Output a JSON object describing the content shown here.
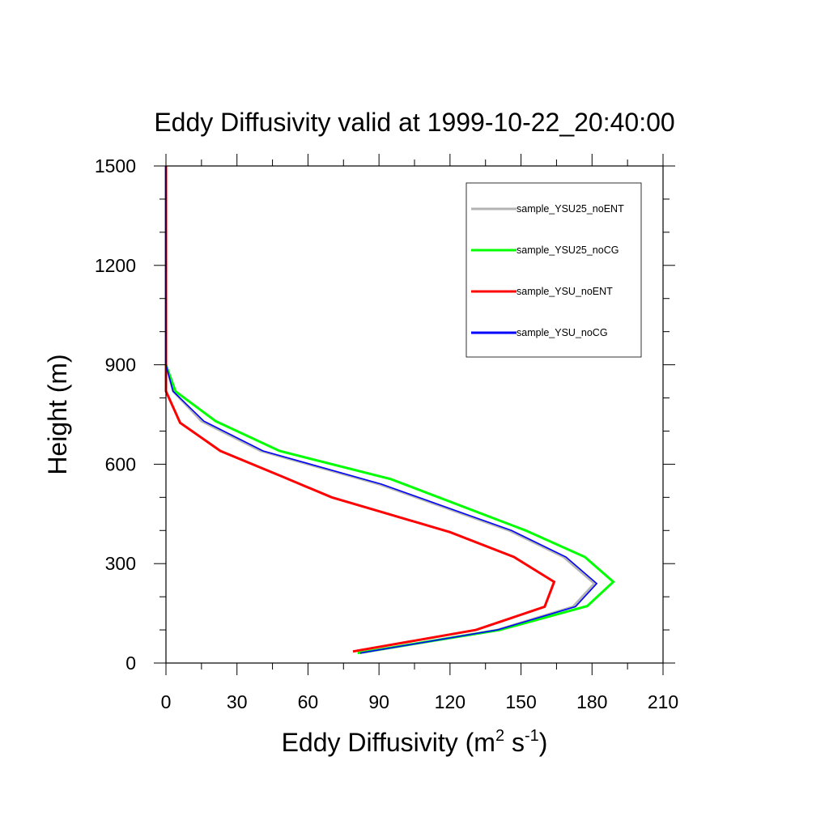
{
  "chart_data": {
    "type": "line",
    "title": "Eddy Diffusivity valid at 1999-10-22_20:40:00",
    "xlabel": {
      "base": "Eddy Diffusivity (m",
      "sup1": "2",
      "mid": " s",
      "sup2": "-1",
      "end": ")"
    },
    "ylabel": "Height (m)",
    "xlim": [
      0,
      210
    ],
    "ylim": [
      0,
      1500
    ],
    "x_ticks": [
      0,
      30,
      60,
      90,
      120,
      150,
      180,
      210
    ],
    "y_ticks": [
      0,
      300,
      600,
      900,
      1200,
      1500
    ],
    "x_tick_labels": [
      "0",
      "30",
      "60",
      "90",
      "120",
      "150",
      "180",
      "210"
    ],
    "y_tick_labels": [
      "0",
      "300",
      "600",
      "900",
      "1200",
      "1500"
    ],
    "legend_position": "top-right",
    "grid": false,
    "series": [
      {
        "name": "sample_YSU25_noENT",
        "color": "#b4b4b4",
        "points": [
          [
            82,
            30
          ],
          [
            140,
            100
          ],
          [
            172,
            170
          ],
          [
            181,
            240
          ],
          [
            168,
            320
          ],
          [
            145,
            400
          ],
          [
            90,
            540
          ],
          [
            40,
            640
          ],
          [
            15,
            730
          ],
          [
            3,
            820
          ],
          [
            0,
            900
          ],
          [
            0,
            1500
          ]
        ]
      },
      {
        "name": "sample_YSU25_noCG",
        "color": "#00ff00",
        "points": [
          [
            81,
            30
          ],
          [
            141,
            100
          ],
          [
            178,
            172
          ],
          [
            189,
            245
          ],
          [
            177,
            320
          ],
          [
            152,
            400
          ],
          [
            95,
            555
          ],
          [
            48,
            640
          ],
          [
            21,
            730
          ],
          [
            4,
            820
          ],
          [
            0,
            900
          ],
          [
            0,
            1500
          ]
        ]
      },
      {
        "name": "sample_YSU_noENT",
        "color": "#ff0000",
        "points": [
          [
            79,
            35
          ],
          [
            131,
            100
          ],
          [
            160,
            170
          ],
          [
            164,
            245
          ],
          [
            147,
            320
          ],
          [
            120,
            395
          ],
          [
            70,
            500
          ],
          [
            50,
            560
          ],
          [
            23,
            640
          ],
          [
            6,
            725
          ],
          [
            0,
            820
          ],
          [
            0,
            900
          ],
          [
            0,
            1500
          ]
        ]
      },
      {
        "name": "sample_YSU_noCG",
        "color": "#0000ff",
        "points": [
          [
            82,
            30
          ],
          [
            140,
            100
          ],
          [
            173,
            170
          ],
          [
            182,
            240
          ],
          [
            169,
            320
          ],
          [
            146,
            400
          ],
          [
            91,
            540
          ],
          [
            41,
            640
          ],
          [
            16,
            730
          ],
          [
            3,
            820
          ],
          [
            0,
            900
          ],
          [
            0,
            1500
          ]
        ]
      }
    ]
  }
}
